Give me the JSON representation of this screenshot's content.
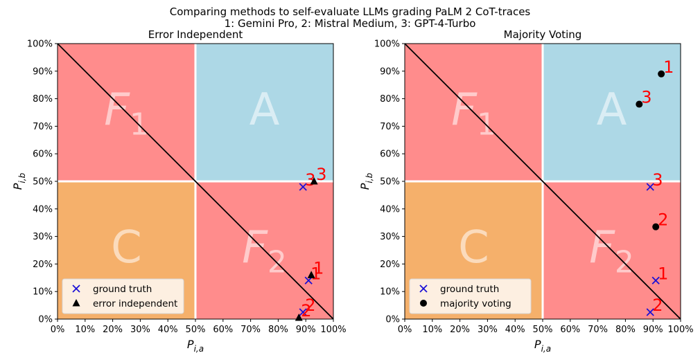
{
  "figure": {
    "title_line1": "Comparing methods to self-evaluate LLMs grading PaLM 2 CoT-traces",
    "title_line2": "1: Gemini Pro, 2: Mistral Medium, 3: GPT-4-Turbo"
  },
  "colors": {
    "region_F": "#ff8c8c",
    "region_A": "#add8e6",
    "region_C": "#f5b06b",
    "region_label": "#ffffff",
    "diagonal": "#000000",
    "ground_truth": "#1a0fd6",
    "method_marker": "#000000",
    "point_label": "#ff0000"
  },
  "chart_data": [
    {
      "type": "scatter",
      "title": "Error Independent",
      "xlabel": "P_{i,a}",
      "ylabel": "P_{i,b}",
      "xlim": [
        0,
        100
      ],
      "ylim": [
        0,
        100
      ],
      "x_ticks": [
        "0%",
        "10%",
        "20%",
        "30%",
        "40%",
        "50%",
        "60%",
        "70%",
        "80%",
        "90%",
        "100%"
      ],
      "y_ticks": [
        "0%",
        "10%",
        "20%",
        "30%",
        "40%",
        "50%",
        "60%",
        "70%",
        "80%",
        "90%",
        "100%"
      ],
      "regions": {
        "top_left": "F1",
        "top_right": "A",
        "bottom_left": "C",
        "bottom_right": "F2"
      },
      "legend_position": "lower-left",
      "series": [
        {
          "name": "ground truth",
          "marker": "x",
          "points": [
            {
              "label": "1",
              "x": 91,
              "y": 14
            },
            {
              "label": "2",
              "x": 89,
              "y": 2.5
            },
            {
              "label": "3",
              "x": 89,
              "y": 48
            }
          ]
        },
        {
          "name": "error independent",
          "marker": "triangle",
          "points": [
            {
              "label": "1",
              "x": 92,
              "y": 16
            },
            {
              "label": "2",
              "x": 87.5,
              "y": 0.5
            },
            {
              "label": "3",
              "x": 93,
              "y": 50
            }
          ]
        }
      ]
    },
    {
      "type": "scatter",
      "title": "Majority Voting",
      "xlabel": "P_{i,a}",
      "ylabel": "P_{i,b}",
      "xlim": [
        0,
        100
      ],
      "ylim": [
        0,
        100
      ],
      "x_ticks": [
        "0%",
        "10%",
        "20%",
        "30%",
        "40%",
        "50%",
        "60%",
        "70%",
        "80%",
        "90%",
        "100%"
      ],
      "y_ticks": [
        "0%",
        "10%",
        "20%",
        "30%",
        "40%",
        "50%",
        "60%",
        "70%",
        "80%",
        "90%",
        "100%"
      ],
      "regions": {
        "top_left": "F1",
        "top_right": "A",
        "bottom_left": "C",
        "bottom_right": "F2"
      },
      "legend_position": "lower-left",
      "series": [
        {
          "name": "ground truth",
          "marker": "x",
          "points": [
            {
              "label": "1",
              "x": 91,
              "y": 14
            },
            {
              "label": "2",
              "x": 89,
              "y": 2.5
            },
            {
              "label": "3",
              "x": 89,
              "y": 48
            }
          ]
        },
        {
          "name": "majority voting",
          "marker": "circle",
          "points": [
            {
              "label": "1",
              "x": 93,
              "y": 89
            },
            {
              "label": "2",
              "x": 91,
              "y": 33.5
            },
            {
              "label": "3",
              "x": 85,
              "y": 78
            }
          ]
        }
      ]
    }
  ]
}
